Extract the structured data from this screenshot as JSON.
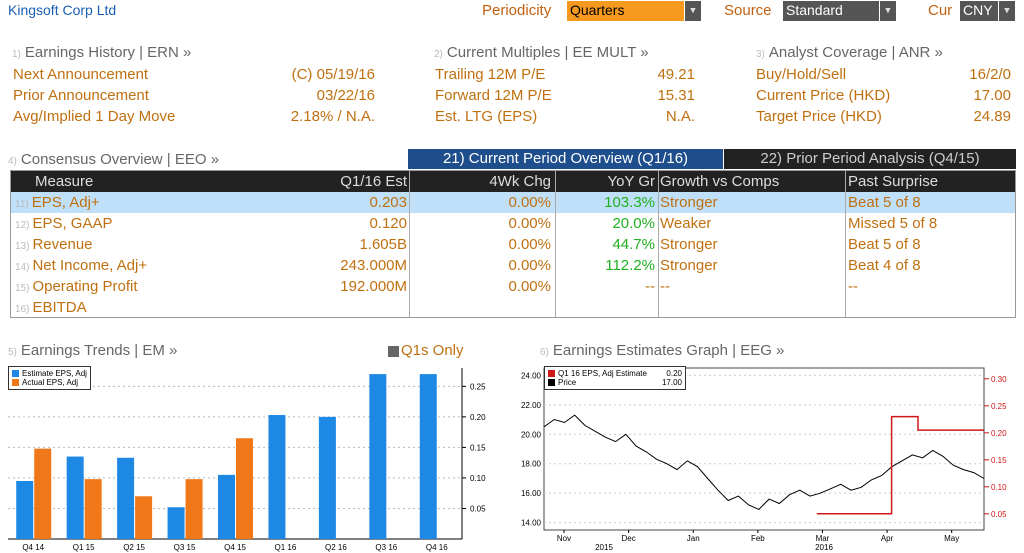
{
  "header": {
    "title": "Kingsoft Corp Ltd",
    "periodicity_label": "Periodicity",
    "periodicity_value": "Quarters",
    "source_label": "Source",
    "source_value": "Standard",
    "cur_label": "Cur",
    "cur_value": "CNY"
  },
  "earnings_history": {
    "num": "1)",
    "title": "Earnings History | ERN »",
    "rows": [
      {
        "label": "Next Announcement",
        "value": "(C)  05/19/16"
      },
      {
        "label": "Prior Announcement",
        "value": "03/22/16"
      },
      {
        "label": "Avg/Implied 1 Day Move",
        "value": "2.18% / N.A."
      }
    ]
  },
  "current_multiples": {
    "num": "2)",
    "title": "Current Multiples | EE MULT »",
    "rows": [
      {
        "label": "Trailing 12M P/E",
        "value": "49.21"
      },
      {
        "label": "Forward 12M P/E",
        "value": "15.31"
      },
      {
        "label": "Est. LTG (EPS)",
        "value": "N.A."
      }
    ]
  },
  "analyst_coverage": {
    "num": "3)",
    "title": "Analyst Coverage | ANR »",
    "rows": [
      {
        "label": "Buy/Hold/Sell",
        "value": "16/2/0"
      },
      {
        "label": "Current Price (HKD)",
        "value": "17.00"
      },
      {
        "label": "Target Price (HKD)",
        "value": "24.89"
      }
    ]
  },
  "consensus": {
    "num": "4)",
    "title": "Consensus Overview | EEO »",
    "tab_current": "21) Current Period Overview (Q1/16)",
    "tab_prior": "22) Prior Period Analysis (Q4/15)",
    "columns": [
      "Measure",
      "Q1/16 Est",
      "4Wk Chg",
      "YoY Gr",
      "Growth vs Comps",
      "Past Surprise"
    ],
    "rows": [
      {
        "num": "11)",
        "measure": "EPS, Adj+",
        "est": "0.203",
        "chg": "0.00%",
        "yoy": "103.3%",
        "growth": "Stronger",
        "surprise": "Beat 5 of 8"
      },
      {
        "num": "12)",
        "measure": "EPS, GAAP",
        "est": "0.120",
        "chg": "0.00%",
        "yoy": "20.0%",
        "growth": "Weaker",
        "surprise": "Missed 5 of 8"
      },
      {
        "num": "13)",
        "measure": "Revenue",
        "est": "1.605B",
        "chg": "0.00%",
        "yoy": "44.7%",
        "growth": "Stronger",
        "surprise": "Beat 5 of 8"
      },
      {
        "num": "14)",
        "measure": "Net Income, Adj+",
        "est": "243.000M",
        "chg": "0.00%",
        "yoy": "112.2%",
        "growth": "Stronger",
        "surprise": "Beat 4 of 8"
      },
      {
        "num": "15)",
        "measure": "Operating Profit",
        "est": "192.000M",
        "chg": "0.00%",
        "yoy": "--",
        "growth": "--",
        "surprise": "--"
      },
      {
        "num": "16)",
        "measure": "EBITDA",
        "est": "",
        "chg": "",
        "yoy": "",
        "growth": "",
        "surprise": ""
      }
    ]
  },
  "trends": {
    "num": "5)",
    "title": "Earnings Trends | EM »",
    "q1s_only": "Q1s Only"
  },
  "graph": {
    "num": "6)",
    "title": "Earnings Estimates Graph | EEG »"
  },
  "colors": {
    "orange": "#c07010",
    "blue": "#1e88e5",
    "bar_orange": "#f07818",
    "green": "#20b020",
    "red": "#d01818",
    "selected_row": "#bfe0f8"
  },
  "chart_data": [
    {
      "type": "bar",
      "categories": [
        "Q4 14",
        "Q1 15",
        "Q2 15",
        "Q3 15",
        "Q4 15",
        "Q1 16",
        "Q2 16",
        "Q3 16",
        "Q4 16"
      ],
      "series": [
        {
          "name": "Estimate EPS, Adj",
          "values": [
            0.095,
            0.135,
            0.133,
            0.052,
            0.105,
            0.203,
            0.2,
            0.27,
            0.27
          ]
        },
        {
          "name": "Actual EPS, Adj",
          "values": [
            0.148,
            0.098,
            0.07,
            0.098,
            0.165,
            null,
            null,
            null,
            null
          ]
        }
      ],
      "yticks": [
        0.05,
        0.1,
        0.15,
        0.2,
        0.25
      ],
      "ylim": [
        0,
        0.28
      ],
      "legend": "top-left"
    },
    {
      "type": "line",
      "x_labels": [
        "Nov",
        "Dec",
        "Jan",
        "Feb",
        "Mar",
        "Apr",
        "May"
      ],
      "year_labels": [
        "2015",
        "2016"
      ],
      "left_ticks": [
        "14.00",
        "16.00",
        "18.00",
        "20.00",
        "22.00",
        "24.00"
      ],
      "right_ticks": [
        "0.05",
        "0.10",
        "0.15",
        "0.20",
        "0.25",
        "0.30"
      ],
      "left_ylim": [
        13.5,
        24.5
      ],
      "right_ylim": [
        0.02,
        0.32
      ],
      "series": [
        {
          "name": "Q1 16 EPS, Adj Estimate",
          "value": "0.20"
        },
        {
          "name": "Price",
          "value": "17.00"
        }
      ],
      "price": [
        20.5,
        21.0,
        20.8,
        21.3,
        20.6,
        20.2,
        19.8,
        19.5,
        20.0,
        19.2,
        18.8,
        18.3,
        18.0,
        17.6,
        18.2,
        17.8,
        17.0,
        16.2,
        15.5,
        15.8,
        15.2,
        14.9,
        15.6,
        15.3,
        15.9,
        16.2,
        15.8,
        16.0,
        16.3,
        16.6,
        16.2,
        16.4,
        16.9,
        17.2,
        17.8,
        18.2,
        18.6,
        18.4,
        18.9,
        18.5,
        17.9,
        17.6,
        17.4,
        17.0
      ],
      "estimate_steps": [
        {
          "from": 0.62,
          "to": 0.79,
          "value": 0.05
        },
        {
          "from": 0.79,
          "to": 0.85,
          "value": 0.23
        },
        {
          "from": 0.85,
          "to": 1.0,
          "value": 0.205
        }
      ],
      "legend": "top-left"
    }
  ]
}
